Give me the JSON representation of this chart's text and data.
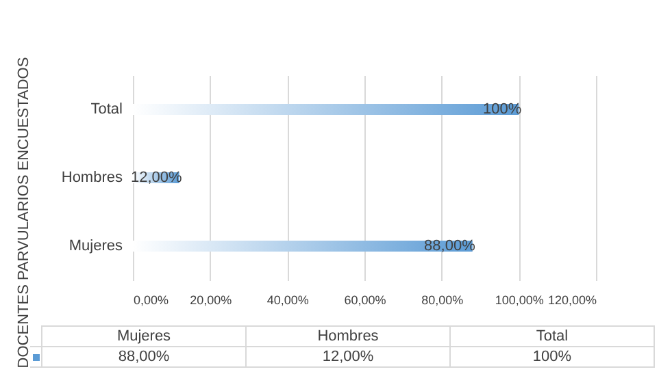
{
  "chart_data": {
    "type": "bar",
    "orientation": "horizontal",
    "ylabel": "DOCENTES PARVULARIOS ENCUESTADOS",
    "categories": [
      "Total",
      "Hombres",
      "Mujeres"
    ],
    "values": [
      100,
      12,
      88
    ],
    "value_labels": [
      "100%",
      "12,00%",
      "88,00%"
    ],
    "color": "#5b9bd5",
    "xlim": [
      0,
      120
    ],
    "xticks": [
      {
        "value": 0,
        "label": "0,00%"
      },
      {
        "value": 20,
        "label": "20,00%"
      },
      {
        "value": 40,
        "label": "40,00%"
      },
      {
        "value": 60,
        "label": "60,00%"
      },
      {
        "value": 80,
        "label": "80,00%"
      },
      {
        "value": 100,
        "label": "100,00%"
      },
      {
        "value": 120,
        "label": "120,00%"
      }
    ],
    "grid": "x"
  }
}
